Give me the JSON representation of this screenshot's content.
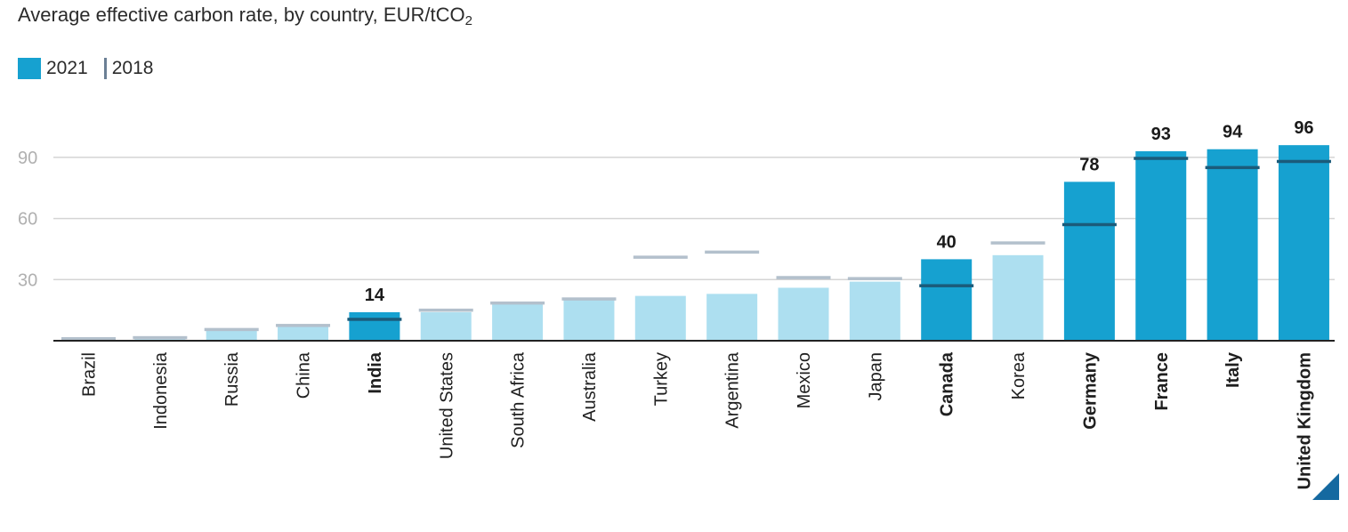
{
  "title": {
    "main": "Average effective carbon rate, by country, EUR/tCO",
    "subscript": "2"
  },
  "legend": {
    "items": [
      {
        "label": "2021",
        "kind": "bar",
        "color": "#16a1d0"
      },
      {
        "label": "2018",
        "kind": "line",
        "color": "#6b7f95"
      }
    ]
  },
  "colors": {
    "highlight_bar": "#16a1d0",
    "normal_bar": "#addff0",
    "marker_on_highlight": "#1b5b7a",
    "marker_on_normal": "#b3c0cc",
    "grid": "#d4d4d4",
    "axis": "#222222",
    "tick_label": "#b0b0b0",
    "corner_mark": "#1569a0"
  },
  "chart_data": {
    "type": "bar",
    "title": "Average effective carbon rate, by country, EUR/tCO2",
    "categories": [
      "Brazil",
      "Indonesia",
      "Russia",
      "China",
      "India",
      "United States",
      "South Africa",
      "Australia",
      "Turkey",
      "Argentina",
      "Mexico",
      "Japan",
      "Canada",
      "Korea",
      "Germany",
      "France",
      "Italy",
      "United Kingdom"
    ],
    "series": [
      {
        "name": "2021",
        "values": [
          0.5,
          0.7,
          5,
          7,
          14,
          14,
          18,
          20,
          22,
          23,
          26,
          29,
          40,
          42,
          78,
          93,
          94,
          96
        ]
      },
      {
        "name": "2018",
        "values": [
          1,
          1.5,
          5.5,
          7.5,
          10.5,
          15,
          18.5,
          20.5,
          41,
          43.5,
          31,
          30.5,
          27,
          48,
          57,
          89.5,
          85,
          88
        ]
      }
    ],
    "highlighted": [
      false,
      false,
      false,
      false,
      true,
      false,
      false,
      false,
      false,
      false,
      false,
      false,
      true,
      false,
      true,
      true,
      true,
      true
    ],
    "data_labels": [
      "",
      "",
      "",
      "",
      "14",
      "",
      "",
      "",
      "",
      "",
      "",
      "",
      "40",
      "",
      "78",
      "93",
      "94",
      "96"
    ],
    "yticks": [
      30,
      60,
      90
    ],
    "ylim": [
      0,
      100
    ],
    "grid": true,
    "legend_position": "top-left"
  }
}
